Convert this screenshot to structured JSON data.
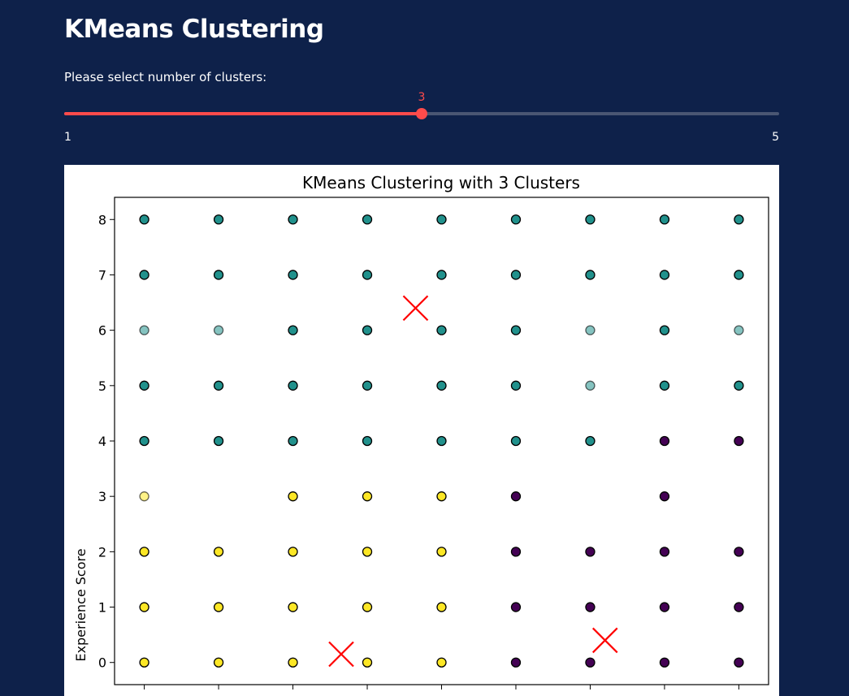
{
  "page": {
    "title": "KMeans Clustering"
  },
  "slider": {
    "label": "Please select number of clusters:",
    "value": 3,
    "value_label": "3",
    "min": 1,
    "max": 5,
    "min_label": "1",
    "max_label": "5",
    "accent_color": "#ff4b4b",
    "track_color": "#4a5673"
  },
  "theme": {
    "background": "#0e214a"
  },
  "chart_data": {
    "type": "scatter",
    "title": "KMeans Clustering with 3 Clusters",
    "ylabel": "Experience Score",
    "xlabel": "",
    "ylim": [
      -0.4,
      8.4
    ],
    "xlim": [
      -0.4,
      8.4
    ],
    "y_ticks": [
      "0",
      "1",
      "2",
      "3",
      "4",
      "5",
      "6",
      "7",
      "8"
    ],
    "x_tick_labels_visible": false,
    "grid": false,
    "cluster_colors": {
      "0": "#440154",
      "1": "#21918c",
      "2": "#fde725"
    },
    "points": [
      {
        "x": 0,
        "y": 8,
        "c": 1
      },
      {
        "x": 1,
        "y": 8,
        "c": 1
      },
      {
        "x": 2,
        "y": 8,
        "c": 1
      },
      {
        "x": 3,
        "y": 8,
        "c": 1
      },
      {
        "x": 4,
        "y": 8,
        "c": 1
      },
      {
        "x": 5,
        "y": 8,
        "c": 1
      },
      {
        "x": 6,
        "y": 8,
        "c": 1
      },
      {
        "x": 7,
        "y": 8,
        "c": 1
      },
      {
        "x": 8,
        "y": 8,
        "c": 1
      },
      {
        "x": 0,
        "y": 7,
        "c": 1
      },
      {
        "x": 1,
        "y": 7,
        "c": 1
      },
      {
        "x": 2,
        "y": 7,
        "c": 1
      },
      {
        "x": 3,
        "y": 7,
        "c": 1
      },
      {
        "x": 4,
        "y": 7,
        "c": 1
      },
      {
        "x": 5,
        "y": 7,
        "c": 1
      },
      {
        "x": 6,
        "y": 7,
        "c": 1
      },
      {
        "x": 7,
        "y": 7,
        "c": 1
      },
      {
        "x": 8,
        "y": 7,
        "c": 1
      },
      {
        "x": 0,
        "y": 6,
        "c": 1,
        "faint": true
      },
      {
        "x": 1,
        "y": 6,
        "c": 1,
        "faint": true
      },
      {
        "x": 2,
        "y": 6,
        "c": 1
      },
      {
        "x": 3,
        "y": 6,
        "c": 1
      },
      {
        "x": 4,
        "y": 6,
        "c": 1
      },
      {
        "x": 5,
        "y": 6,
        "c": 1
      },
      {
        "x": 6,
        "y": 6,
        "c": 1,
        "faint": true
      },
      {
        "x": 7,
        "y": 6,
        "c": 1
      },
      {
        "x": 8,
        "y": 6,
        "c": 1,
        "faint": true
      },
      {
        "x": 0,
        "y": 5,
        "c": 1
      },
      {
        "x": 1,
        "y": 5,
        "c": 1
      },
      {
        "x": 2,
        "y": 5,
        "c": 1
      },
      {
        "x": 3,
        "y": 5,
        "c": 1
      },
      {
        "x": 4,
        "y": 5,
        "c": 1
      },
      {
        "x": 5,
        "y": 5,
        "c": 1
      },
      {
        "x": 6,
        "y": 5,
        "c": 1,
        "faint": true
      },
      {
        "x": 7,
        "y": 5,
        "c": 1
      },
      {
        "x": 8,
        "y": 5,
        "c": 1
      },
      {
        "x": 0,
        "y": 4,
        "c": 1
      },
      {
        "x": 1,
        "y": 4,
        "c": 1
      },
      {
        "x": 2,
        "y": 4,
        "c": 1
      },
      {
        "x": 3,
        "y": 4,
        "c": 1
      },
      {
        "x": 4,
        "y": 4,
        "c": 1
      },
      {
        "x": 5,
        "y": 4,
        "c": 1
      },
      {
        "x": 6,
        "y": 4,
        "c": 1
      },
      {
        "x": 7,
        "y": 4,
        "c": 0
      },
      {
        "x": 8,
        "y": 4,
        "c": 0
      },
      {
        "x": 0,
        "y": 3,
        "c": 2,
        "faint": true
      },
      {
        "x": 2,
        "y": 3,
        "c": 2
      },
      {
        "x": 3,
        "y": 3,
        "c": 2
      },
      {
        "x": 4,
        "y": 3,
        "c": 2
      },
      {
        "x": 5,
        "y": 3,
        "c": 0
      },
      {
        "x": 7,
        "y": 3,
        "c": 0
      },
      {
        "x": 0,
        "y": 2,
        "c": 2
      },
      {
        "x": 1,
        "y": 2,
        "c": 2
      },
      {
        "x": 2,
        "y": 2,
        "c": 2
      },
      {
        "x": 3,
        "y": 2,
        "c": 2
      },
      {
        "x": 4,
        "y": 2,
        "c": 2
      },
      {
        "x": 5,
        "y": 2,
        "c": 0
      },
      {
        "x": 6,
        "y": 2,
        "c": 0
      },
      {
        "x": 7,
        "y": 2,
        "c": 0
      },
      {
        "x": 8,
        "y": 2,
        "c": 0
      },
      {
        "x": 0,
        "y": 1,
        "c": 2
      },
      {
        "x": 1,
        "y": 1,
        "c": 2
      },
      {
        "x": 2,
        "y": 1,
        "c": 2
      },
      {
        "x": 3,
        "y": 1,
        "c": 2
      },
      {
        "x": 4,
        "y": 1,
        "c": 2
      },
      {
        "x": 5,
        "y": 1,
        "c": 0
      },
      {
        "x": 6,
        "y": 1,
        "c": 0
      },
      {
        "x": 7,
        "y": 1,
        "c": 0
      },
      {
        "x": 8,
        "y": 1,
        "c": 0
      },
      {
        "x": 0,
        "y": 0,
        "c": 2
      },
      {
        "x": 1,
        "y": 0,
        "c": 2
      },
      {
        "x": 2,
        "y": 0,
        "c": 2
      },
      {
        "x": 3,
        "y": 0,
        "c": 2
      },
      {
        "x": 4,
        "y": 0,
        "c": 2
      },
      {
        "x": 5,
        "y": 0,
        "c": 0
      },
      {
        "x": 6,
        "y": 0,
        "c": 0
      },
      {
        "x": 7,
        "y": 0,
        "c": 0
      },
      {
        "x": 8,
        "y": 0,
        "c": 0
      }
    ],
    "centroids": [
      {
        "x": 3.65,
        "y": 6.4
      },
      {
        "x": 2.65,
        "y": 0.15
      },
      {
        "x": 6.2,
        "y": 0.4
      }
    ],
    "centroid_color": "#ff0000"
  }
}
